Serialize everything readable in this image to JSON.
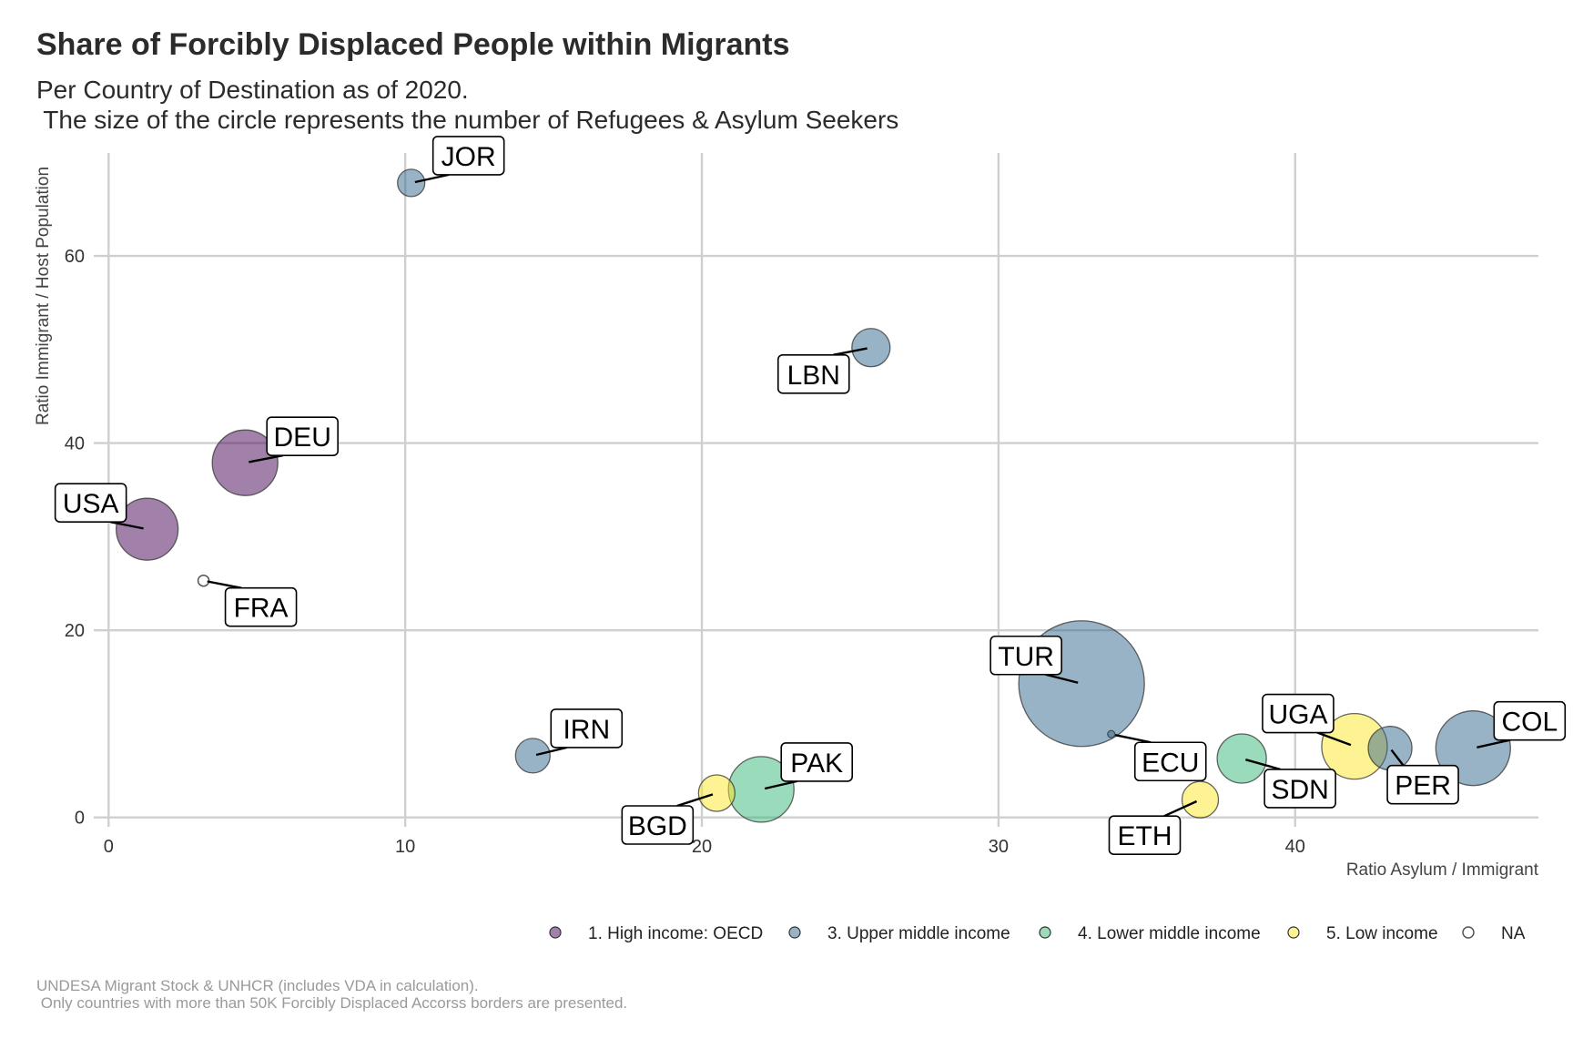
{
  "chart_data": {
    "type": "scatter",
    "title": "Share of Forcibly Displaced People within Migrants",
    "subtitle": "Per Country of Destination as of 2020.\n The size of the circle represents the number of Refugees & Asylum Seekers",
    "caption": "UNDESA Migrant Stock & UNHCR (includes VDA in calculation).\n Only countries with more than 50K Forcibly Displaced Accorss borders are presented.",
    "xlabel": "Ratio Asylum / Immigrant",
    "ylabel": "Ratio Immigrant / Host Population",
    "xlim": [
      -0.5,
      48.2
    ],
    "ylim": [
      -1,
      71
    ],
    "x_ticks": [
      0,
      10,
      20,
      30,
      40
    ],
    "y_ticks": [
      0,
      20,
      40,
      60
    ],
    "grid": true,
    "legend_position": "bottom-right",
    "legend": [
      {
        "name": "1. High income: OECD",
        "color": "#440154"
      },
      {
        "name": "3. Upper middle income",
        "color": "#31688E"
      },
      {
        "name": "4. Lower middle income",
        "color": "#35B779"
      },
      {
        "name": "5. Low income",
        "color": "#FDE725"
      },
      {
        "name": "NA",
        "color": "none"
      }
    ],
    "points": [
      {
        "label": "JOR",
        "x": 10.2,
        "y": 67.8,
        "size": 15,
        "group": 1
      },
      {
        "label": "LBN",
        "x": 25.7,
        "y": 50.2,
        "size": 21,
        "group": 1
      },
      {
        "label": "DEU",
        "x": 4.6,
        "y": 37.9,
        "size": 36,
        "group": 0
      },
      {
        "label": "USA",
        "x": 1.3,
        "y": 30.8,
        "size": 34,
        "group": 0
      },
      {
        "label": "FRA",
        "x": 3.2,
        "y": 25.3,
        "size": 6,
        "group": 4
      },
      {
        "label": "TUR",
        "x": 32.8,
        "y": 14.3,
        "size": 69,
        "group": 1
      },
      {
        "label": "IRN",
        "x": 14.3,
        "y": 6.6,
        "size": 19,
        "group": 1
      },
      {
        "label": "PAK",
        "x": 22.0,
        "y": 3.0,
        "size": 36,
        "group": 2
      },
      {
        "label": "BGD",
        "x": 20.5,
        "y": 2.6,
        "size": 20,
        "group": 3
      },
      {
        "label": "ECU",
        "x": 33.8,
        "y": 8.9,
        "size": 4,
        "group": 1
      },
      {
        "label": "SDN",
        "x": 38.2,
        "y": 6.3,
        "size": 27,
        "group": 2
      },
      {
        "label": "ETH",
        "x": 36.8,
        "y": 1.9,
        "size": 20,
        "group": 3
      },
      {
        "label": "UGA",
        "x": 42.0,
        "y": 7.6,
        "size": 36,
        "group": 3
      },
      {
        "label": "PER",
        "x": 43.2,
        "y": 7.4,
        "size": 24,
        "group": 1
      },
      {
        "label": "COL",
        "x": 46.0,
        "y": 7.4,
        "size": 41,
        "group": 1
      }
    ]
  }
}
